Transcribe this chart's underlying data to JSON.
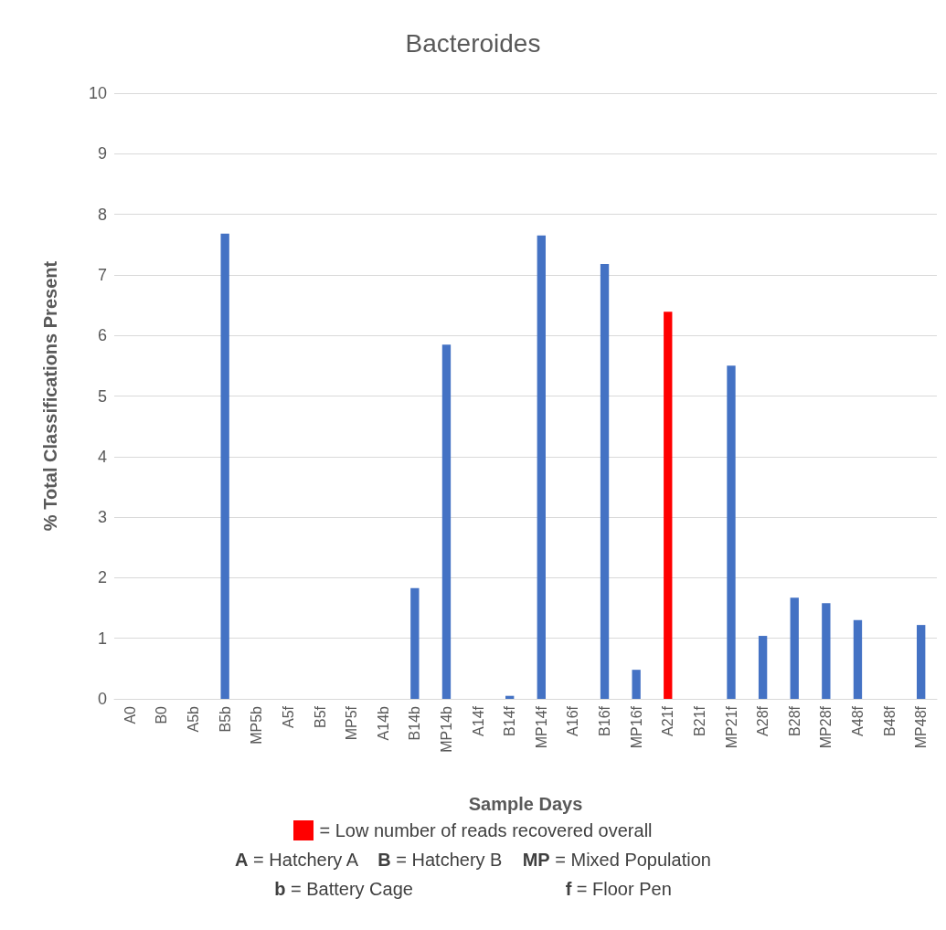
{
  "chart_data": {
    "type": "bar",
    "title": "Bacteroides",
    "xlabel": "Sample Days",
    "ylabel": "% Total Classifications Present",
    "categories": [
      "A0",
      "B0",
      "A5b",
      "B5b",
      "MP5b",
      "A5f",
      "B5f",
      "MP5f",
      "A14b",
      "B14b",
      "MP14b",
      "A14f",
      "B14f",
      "MP14f",
      "A16f",
      "B16f",
      "MP16f",
      "A21f",
      "B21f",
      "MP21f",
      "A28f",
      "B28f",
      "MP28f",
      "A48f",
      "B48f",
      "MP48f"
    ],
    "values": [
      0,
      0,
      0,
      7.68,
      0,
      0,
      0,
      0,
      0,
      1.83,
      5.85,
      0,
      0.05,
      7.65,
      0,
      7.18,
      0.48,
      6.39,
      0,
      5.5,
      1.04,
      1.67,
      1.58,
      1.3,
      0,
      1.22
    ],
    "colors": [
      "#4472c4",
      "#4472c4",
      "#4472c4",
      "#4472c4",
      "#4472c4",
      "#4472c4",
      "#4472c4",
      "#4472c4",
      "#4472c4",
      "#4472c4",
      "#4472c4",
      "#4472c4",
      "#4472c4",
      "#4472c4",
      "#4472c4",
      "#4472c4",
      "#4472c4",
      "#ff0000",
      "#4472c4",
      "#4472c4",
      "#4472c4",
      "#4472c4",
      "#4472c4",
      "#4472c4",
      "#4472c4",
      "#4472c4"
    ],
    "ylim": [
      0,
      10
    ],
    "yticks": [
      0,
      1,
      2,
      3,
      4,
      5,
      6,
      7,
      8,
      9,
      10
    ],
    "grid": "y",
    "annotations": [
      "= Low number of reads recovered overall",
      "A = Hatchery A    B = Hatchery B    MP = Mixed Population",
      "b = Battery Cage                              f = Floor Pen"
    ]
  }
}
